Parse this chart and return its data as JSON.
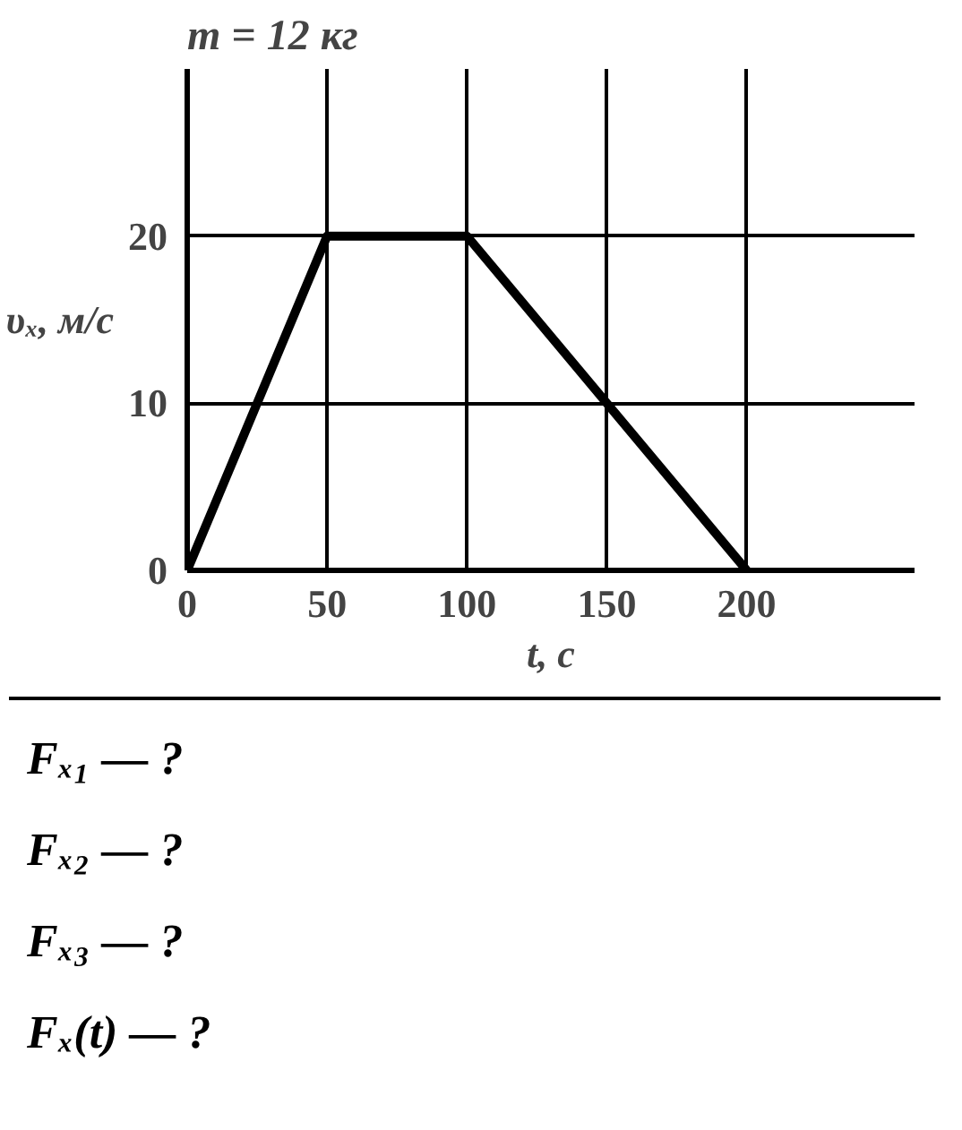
{
  "chart_data": {
    "type": "line",
    "title": "m = 12 кг",
    "ylabel": "υₓ, м/с",
    "xlabel": "t, с",
    "x": [
      0,
      50,
      100,
      200
    ],
    "series": [
      {
        "color": "#000000",
        "values": [
          0,
          20,
          20,
          0
        ]
      }
    ],
    "xlim": [
      0,
      260
    ],
    "ylim": [
      0,
      30
    ],
    "xticks": [
      0,
      50,
      100,
      150,
      200
    ],
    "yticks": [
      0,
      10,
      20
    ],
    "grid": true,
    "marker": "none",
    "line_style": "solid",
    "annotations": [
      "Fₓ₁ — ?",
      "Fₓ₂ — ?",
      "Fₓ₃ — ?",
      "Fₓ(t) — ?"
    ]
  }
}
